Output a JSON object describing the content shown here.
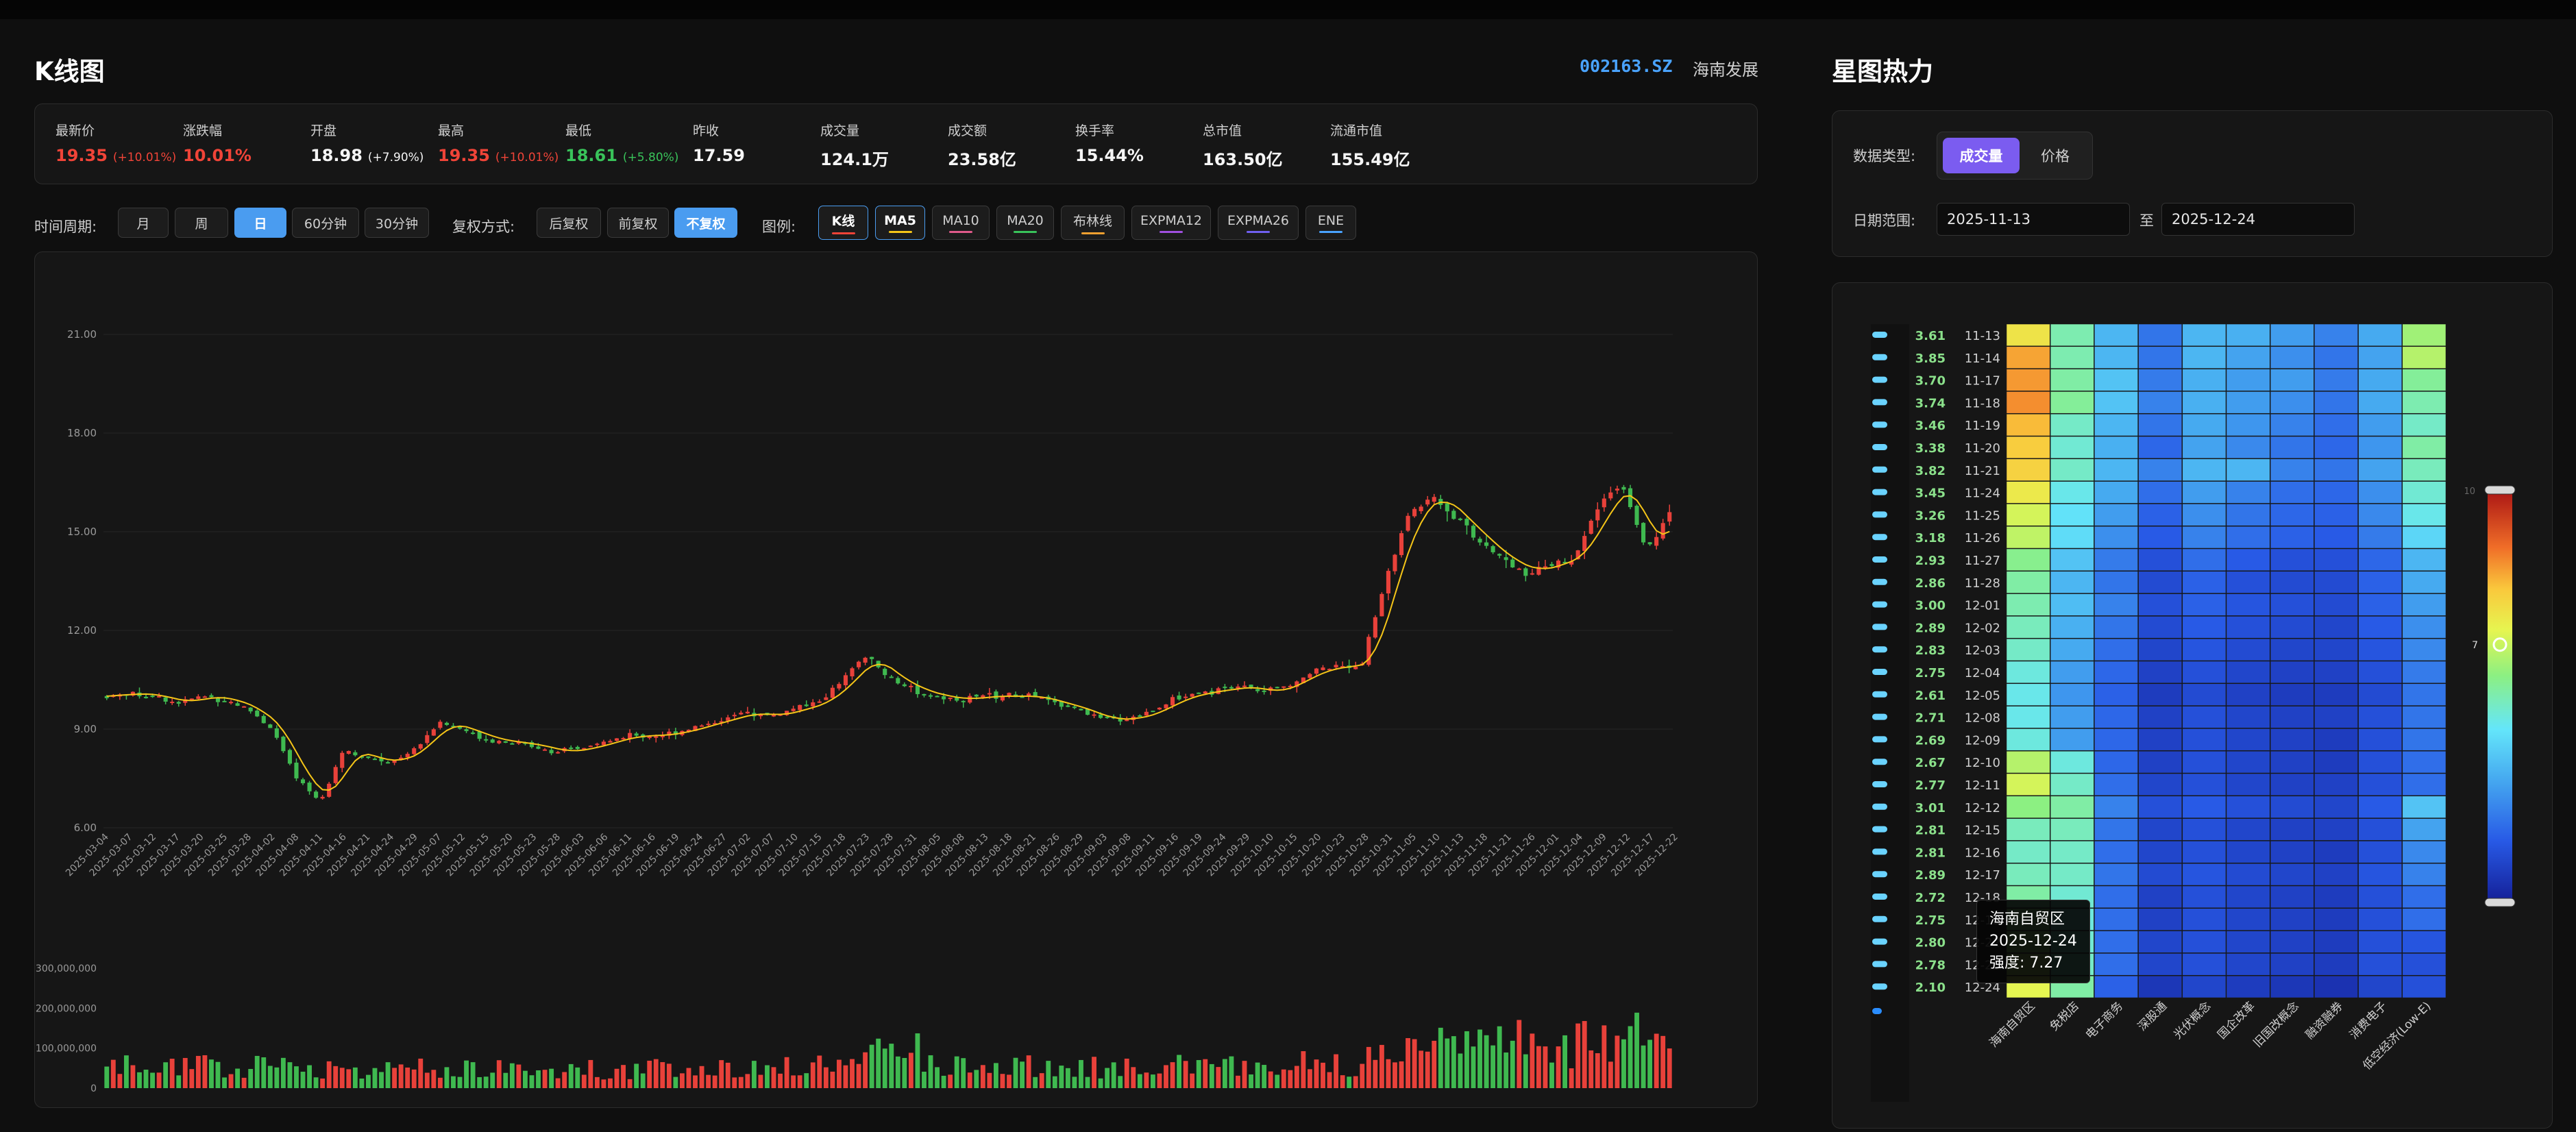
{
  "kline": {
    "title": "K线图",
    "stock_code": "002163.SZ",
    "stock_name": "海南发展",
    "stats": [
      {
        "label": "最新价",
        "value": "19.35",
        "sub": "(+10.01%)",
        "tone": "red"
      },
      {
        "label": "涨跌幅",
        "value": "10.01%",
        "sub": "",
        "tone": "red"
      },
      {
        "label": "开盘",
        "value": "18.98",
        "sub": "(+7.90%)",
        "tone": "white"
      },
      {
        "label": "最高",
        "value": "19.35",
        "sub": "(+10.01%)",
        "tone": "red"
      },
      {
        "label": "最低",
        "value": "18.61",
        "sub": "(+5.80%)",
        "tone": "green"
      },
      {
        "label": "昨收",
        "value": "17.59",
        "sub": "",
        "tone": "white"
      },
      {
        "label": "成交量",
        "value": "124.1万",
        "sub": "",
        "tone": "white"
      },
      {
        "label": "成交额",
        "value": "23.58亿",
        "sub": "",
        "tone": "white"
      },
      {
        "label": "换手率",
        "value": "15.44%",
        "sub": "",
        "tone": "white"
      },
      {
        "label": "总市值",
        "value": "163.50亿",
        "sub": "",
        "tone": "white"
      },
      {
        "label": "流通市值",
        "value": "155.49亿",
        "sub": "",
        "tone": "white"
      }
    ],
    "period_label": "时间周期:",
    "periods": [
      "月",
      "周",
      "日",
      "60分钟",
      "30分钟"
    ],
    "period_active": "日",
    "adjust_label": "复权方式:",
    "adjusts": [
      "后复权",
      "前复权",
      "不复权"
    ],
    "adjust_active": "不复权",
    "legend_label": "图例:",
    "legends": [
      {
        "name": "K线",
        "color": "#f04438",
        "on": true
      },
      {
        "name": "MA5",
        "color": "#f5c518",
        "on": true
      },
      {
        "name": "MA10",
        "color": "#e05a8a",
        "on": false
      },
      {
        "name": "MA20",
        "color": "#39c35a",
        "on": false
      },
      {
        "name": "布林线",
        "color": "#f0a030",
        "on": false
      },
      {
        "name": "EXPMA12",
        "color": "#a050e0",
        "on": false
      },
      {
        "name": "EXPMA26",
        "color": "#7060f0",
        "on": false
      },
      {
        "name": "ENE",
        "color": "#4aa3ff",
        "on": false
      }
    ]
  },
  "chart_data": [
    {
      "type": "candlestick",
      "title": "",
      "ylim": [
        6,
        21
      ],
      "yticks": [
        "21.00",
        "18.00",
        "15.00",
        "12.00",
        "9.00",
        "6.00"
      ],
      "dates": [
        "2025-03-04",
        "2025-03-07",
        "2025-03-12",
        "2025-03-17",
        "2025-03-20",
        "2025-03-25",
        "2025-03-28",
        "2025-04-02",
        "2025-04-08",
        "2025-04-11",
        "2025-04-16",
        "2025-04-21",
        "2025-04-24",
        "2025-04-29",
        "2025-05-07",
        "2025-05-12",
        "2025-05-15",
        "2025-05-20",
        "2025-05-23",
        "2025-05-28",
        "2025-06-03",
        "2025-06-06",
        "2025-06-11",
        "2025-06-16",
        "2025-06-19",
        "2025-06-24",
        "2025-06-27",
        "2025-07-02",
        "2025-07-07",
        "2025-07-10",
        "2025-07-15",
        "2025-07-18",
        "2025-07-23",
        "2025-07-28",
        "2025-07-31",
        "2025-08-05",
        "2025-08-08",
        "2025-08-13",
        "2025-08-18",
        "2025-08-21",
        "2025-08-26",
        "2025-08-29",
        "2025-09-03",
        "2025-09-08",
        "2025-09-11",
        "2025-09-16",
        "2025-09-19",
        "2025-09-24",
        "2025-09-29",
        "2025-10-10",
        "2025-10-15",
        "2025-10-20",
        "2025-10-23",
        "2025-10-28",
        "2025-10-31",
        "2025-11-05",
        "2025-11-10",
        "2025-11-13",
        "2025-11-18",
        "2025-11-21",
        "2025-11-26",
        "2025-12-01",
        "2025-12-04",
        "2025-12-09",
        "2025-12-12",
        "2025-12-17",
        "2025-12-22"
      ],
      "close_trend": [
        10.0,
        10.1,
        10.0,
        9.8,
        10.0,
        9.9,
        9.6,
        9.0,
        7.5,
        6.8,
        8.4,
        8.1,
        8.0,
        8.4,
        9.2,
        9.0,
        8.7,
        8.6,
        8.5,
        8.3,
        8.4,
        8.6,
        8.8,
        8.8,
        8.9,
        9.1,
        9.3,
        9.5,
        9.4,
        9.6,
        9.8,
        10.4,
        11.2,
        10.6,
        10.2,
        10.0,
        9.9,
        10.0,
        10.0,
        10.0,
        9.8,
        9.6,
        9.3,
        9.3,
        9.5,
        9.9,
        10.1,
        10.2,
        10.3,
        10.1,
        10.4,
        10.8,
        10.9,
        11.0,
        13.5,
        15.6,
        16.1,
        15.4,
        14.7,
        14.1,
        13.8,
        14.0,
        14.3,
        15.7,
        16.5,
        14.4,
        15.6
      ],
      "series": [
        {
          "name": "MA5",
          "color": "#f5c518"
        }
      ],
      "volume_yticks": [
        "300,000,000",
        "200,000,000",
        "100,000,000",
        "0"
      ],
      "volume_ylim": [
        0,
        300000000
      ]
    },
    {
      "type": "heatmap",
      "title": "星图热力",
      "categories": [
        "海南自贸区",
        "免税店",
        "电子商务",
        "深股通",
        "光伏概念",
        "国企改革",
        "旧国改概念",
        "融资融券",
        "消费电子",
        "低空经济(Low-E)"
      ],
      "rows": [
        {
          "score": "3.61",
          "date": "11-13",
          "values": [
            7.6,
            6.0,
            4.6,
            3.6,
            4.6,
            4.5,
            4.2,
            3.8,
            4.4,
            6.6
          ]
        },
        {
          "score": "3.85",
          "date": "11-14",
          "values": [
            8.4,
            6.0,
            4.6,
            3.6,
            4.6,
            4.3,
            4.0,
            3.6,
            4.3,
            6.8
          ]
        },
        {
          "score": "3.70",
          "date": "11-17",
          "values": [
            8.5,
            6.1,
            4.8,
            3.7,
            4.5,
            4.2,
            4.2,
            3.7,
            4.4,
            6.2
          ]
        },
        {
          "score": "3.74",
          "date": "11-18",
          "values": [
            8.6,
            6.2,
            4.8,
            3.8,
            4.5,
            4.2,
            4.0,
            3.6,
            4.4,
            6.0
          ]
        },
        {
          "score": "3.46",
          "date": "11-19",
          "values": [
            8.2,
            5.8,
            4.6,
            3.6,
            4.4,
            4.1,
            3.8,
            3.5,
            4.2,
            5.8
          ]
        },
        {
          "score": "3.38",
          "date": "11-20",
          "values": [
            8.0,
            5.7,
            4.5,
            3.4,
            4.3,
            3.9,
            3.6,
            3.4,
            4.1,
            6.1
          ]
        },
        {
          "score": "3.82",
          "date": "11-21",
          "values": [
            7.9,
            5.8,
            4.6,
            3.8,
            4.6,
            4.6,
            3.8,
            3.6,
            4.3,
            5.9
          ]
        },
        {
          "score": "3.45",
          "date": "11-24",
          "values": [
            7.5,
            5.5,
            4.4,
            3.5,
            4.2,
            3.8,
            3.5,
            3.4,
            4.0,
            5.7
          ]
        },
        {
          "score": "3.26",
          "date": "11-25",
          "values": [
            7.1,
            5.3,
            4.2,
            3.3,
            4.0,
            3.6,
            3.4,
            3.3,
            3.9,
            5.5
          ]
        },
        {
          "score": "3.18",
          "date": "11-26",
          "values": [
            6.9,
            5.2,
            4.0,
            3.2,
            3.8,
            3.5,
            3.3,
            3.2,
            3.7,
            5.1
          ]
        },
        {
          "score": "2.93",
          "date": "11-27",
          "values": [
            6.3,
            4.8,
            3.7,
            3.0,
            3.5,
            3.2,
            3.0,
            3.0,
            3.4,
            4.6
          ]
        },
        {
          "score": "2.86",
          "date": "11-28",
          "values": [
            6.1,
            4.6,
            3.6,
            2.9,
            3.3,
            3.0,
            2.9,
            2.9,
            3.3,
            4.4
          ]
        },
        {
          "score": "3.00",
          "date": "12-01",
          "values": [
            6.0,
            4.7,
            3.8,
            3.0,
            3.3,
            3.1,
            3.0,
            2.9,
            3.3,
            4.2
          ]
        },
        {
          "score": "2.89",
          "date": "12-02",
          "values": [
            5.9,
            4.5,
            3.6,
            2.9,
            3.2,
            3.0,
            2.9,
            2.8,
            3.2,
            4.0
          ]
        },
        {
          "score": "2.83",
          "date": "12-03",
          "values": [
            5.8,
            4.4,
            3.5,
            2.8,
            3.1,
            2.9,
            2.8,
            2.8,
            3.1,
            3.9
          ]
        },
        {
          "score": "2.75",
          "date": "12-04",
          "values": [
            5.6,
            4.2,
            3.4,
            2.7,
            3.0,
            2.8,
            2.7,
            2.7,
            3.0,
            3.7
          ]
        },
        {
          "score": "2.61",
          "date": "12-05",
          "values": [
            5.5,
            4.1,
            3.3,
            2.6,
            2.9,
            2.7,
            2.6,
            2.6,
            2.9,
            3.6
          ]
        },
        {
          "score": "2.71",
          "date": "12-08",
          "values": [
            5.5,
            4.2,
            3.4,
            2.7,
            3.0,
            2.8,
            2.7,
            2.7,
            3.0,
            3.6
          ]
        },
        {
          "score": "2.69",
          "date": "12-09",
          "values": [
            5.6,
            4.2,
            3.4,
            2.7,
            3.0,
            2.8,
            2.7,
            2.6,
            3.0,
            3.6
          ]
        },
        {
          "score": "2.67",
          "date": "12-10",
          "values": [
            6.8,
            5.6,
            3.4,
            2.7,
            3.0,
            2.8,
            2.7,
            2.6,
            3.0,
            3.5
          ]
        },
        {
          "score": "2.77",
          "date": "12-11",
          "values": [
            7.1,
            5.8,
            3.5,
            2.8,
            3.0,
            2.8,
            2.7,
            2.7,
            3.0,
            3.5
          ]
        },
        {
          "score": "3.01",
          "date": "12-12",
          "values": [
            6.4,
            6.1,
            3.8,
            3.0,
            3.2,
            3.0,
            2.9,
            2.8,
            3.2,
            4.8
          ]
        },
        {
          "score": "2.81",
          "date": "12-15",
          "values": [
            5.9,
            5.9,
            3.6,
            2.8,
            3.0,
            2.8,
            2.7,
            2.7,
            3.0,
            4.3
          ]
        },
        {
          "score": "2.81",
          "date": "12-16",
          "values": [
            5.8,
            5.8,
            3.5,
            2.8,
            3.0,
            2.8,
            2.7,
            2.6,
            3.0,
            3.9
          ]
        },
        {
          "score": "2.89",
          "date": "12-17",
          "values": [
            5.9,
            5.8,
            3.6,
            2.9,
            3.1,
            2.9,
            2.8,
            2.7,
            3.1,
            3.8
          ]
        },
        {
          "score": "2.72",
          "date": "12-18",
          "values": [
            6.1,
            5.7,
            3.5,
            2.7,
            3.0,
            2.8,
            2.7,
            2.6,
            3.0,
            3.5
          ]
        },
        {
          "score": "2.75",
          "date": "12-19",
          "values": [
            6.4,
            5.6,
            3.5,
            2.7,
            3.0,
            2.8,
            2.7,
            2.6,
            3.0,
            3.5
          ]
        },
        {
          "score": "2.80",
          "date": "12-22",
          "values": [
            6.6,
            5.7,
            3.5,
            2.8,
            3.0,
            2.8,
            2.7,
            2.6,
            3.0,
            3.1
          ]
        },
        {
          "score": "2.78",
          "date": "12-23",
          "values": [
            6.8,
            5.8,
            3.5,
            2.8,
            3.0,
            2.8,
            2.7,
            2.6,
            3.0,
            3.0
          ]
        },
        {
          "score": "2.10",
          "date": "12-24",
          "values": [
            7.27,
            6.1,
            3.3,
            2.5,
            2.8,
            2.6,
            2.5,
            2.4,
            2.8,
            3.0
          ]
        }
      ],
      "visual_range": [
        2,
        10
      ],
      "visual_value": 7
    }
  ],
  "heat": {
    "title": "星图热力",
    "type_label": "数据类型:",
    "types": [
      "成交量",
      "价格"
    ],
    "type_active": "成交量",
    "range_label": "日期范围:",
    "date_from": "2025-11-13",
    "date_sep": "至",
    "date_to": "2025-12-24",
    "visual_max": "10",
    "visual_value": "7",
    "tooltip": {
      "line1": "海南自贸区",
      "line2": "2025-12-24",
      "line3": "强度: 7.27"
    },
    "colors": {
      "accent": "#7b5cf0",
      "active_blue": "#4a9cf0",
      "up": "#f04438",
      "down": "#39c35a"
    }
  }
}
